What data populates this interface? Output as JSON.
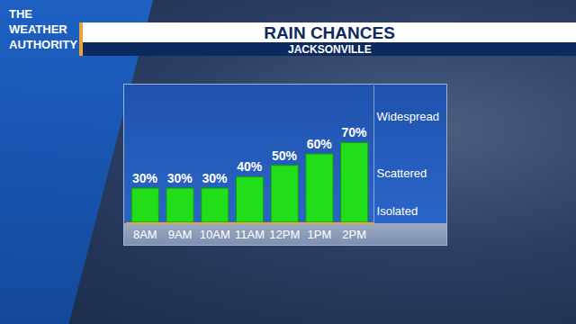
{
  "chart_data": {
    "type": "bar",
    "title": "RAIN CHANCES",
    "subtitle": "JACKSONVILLE",
    "annotations": [
      "THE WEATHER AUTHORITY"
    ],
    "categories": [
      "8AM",
      "9AM",
      "10AM",
      "11AM",
      "12PM",
      "1PM",
      "2PM"
    ],
    "values": [
      30,
      30,
      30,
      40,
      50,
      60,
      70
    ],
    "value_labels": [
      "30%",
      "30%",
      "30%",
      "40%",
      "50%",
      "60%",
      "70%"
    ],
    "color": "#22dd1a",
    "ylim": [
      0,
      120
    ],
    "yticks": [
      {
        "value": 10,
        "label": "Isolated"
      },
      {
        "value": 43,
        "label": "Scattered"
      },
      {
        "value": 93,
        "label": "Widespread"
      }
    ],
    "grid": false,
    "data_labels": true
  }
}
